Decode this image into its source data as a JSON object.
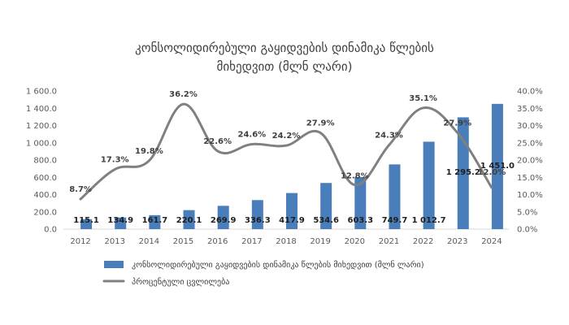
{
  "chart_data": {
    "type": "bar",
    "title_lines": [
      "კონსოლიდირებული გაყიდვების დინამიკა წლების",
      "მიხედვით (მლნ ლარი)"
    ],
    "categories": [
      "2012",
      "2013",
      "2014",
      "2015",
      "2016",
      "2017",
      "2018",
      "2019",
      "2020",
      "2021",
      "2022",
      "2023",
      "2024"
    ],
    "series": [
      {
        "name": "კონსოლიდირებული გაყიდვების დინამიკა წლების მიხედვით (მლნ ლარი)",
        "type": "bar",
        "axis": "left",
        "color": "#4a7ebb",
        "values": [
          115.1,
          134.9,
          161.7,
          220.1,
          269.9,
          336.3,
          417.9,
          534.6,
          603.3,
          749.7,
          1012.7,
          1295.2,
          1451.0
        ],
        "labels": [
          "115.1",
          "134.9",
          "161.7",
          "220.1",
          "269.9",
          "336.3",
          "417.9",
          "534.6",
          "603.3",
          "749.7",
          "1 012.7",
          "1 295.2",
          "1 451.0"
        ]
      },
      {
        "name": "პროცენტული ცვლილება",
        "type": "line",
        "axis": "right",
        "color": "#808080",
        "values": [
          8.7,
          17.3,
          19.8,
          36.2,
          22.6,
          24.6,
          24.2,
          27.9,
          12.8,
          24.3,
          35.1,
          27.9,
          12.0
        ],
        "labels": [
          "8.7%",
          "17.3%",
          "19.8%",
          "36.2%",
          "22.6%",
          "24.6%",
          "24.2%",
          "27.9%",
          "12.8%",
          "24.3%",
          "35.1%",
          "27.9%",
          "12.0%"
        ]
      }
    ],
    "y_left": {
      "ylim": [
        0,
        1600
      ],
      "ticks": [
        "0.0",
        "200.0",
        "400.0",
        "600.0",
        "800.0",
        "1 000.0",
        "1 200.0",
        "1 400.0",
        "1 600.0"
      ]
    },
    "y_right": {
      "ylim": [
        0,
        40
      ],
      "ticks": [
        "0.0%",
        "5.0%",
        "10.0%",
        "15.0%",
        "20.0%",
        "25.0%",
        "30.0%",
        "35.0%",
        "40.0%"
      ]
    },
    "grid": false,
    "legend_position": "bottom"
  }
}
